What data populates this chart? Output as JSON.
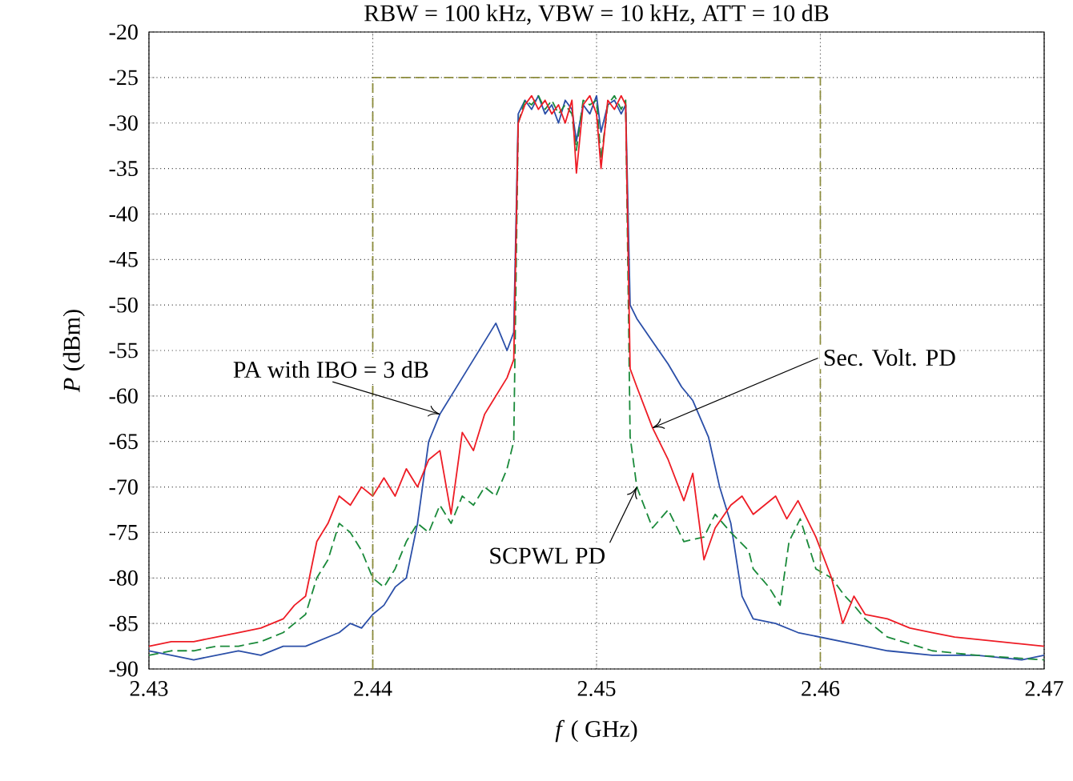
{
  "chart_data": {
    "type": "line",
    "title": "RBW = 100 kHz, VBW = 10 kHz, ATT = 10 dB",
    "xlabel": "*f* ( GHz)",
    "ylabel": "*P* (dBm)",
    "xlim": [
      2.43,
      2.47
    ],
    "xticks": [
      2.43,
      2.44,
      2.45,
      2.46,
      2.47
    ],
    "ylim": [
      -90,
      -20
    ],
    "yticks": [
      -90,
      -85,
      -80,
      -75,
      -70,
      -65,
      -60,
      -55,
      -50,
      -45,
      -40,
      -35,
      -30,
      -25,
      -20
    ],
    "grid": true,
    "marker": "none",
    "series": [
      {
        "color": "#2b4fa8",
        "line_style": "solid",
        "x": [
          2.43,
          2.431,
          2.432,
          2.433,
          2.434,
          2.435,
          2.436,
          2.437,
          2.438,
          2.4385,
          2.439,
          2.4395,
          2.44,
          2.4405,
          2.441,
          2.4415,
          2.442,
          2.4425,
          2.443,
          2.4435,
          2.444,
          2.4445,
          2.445,
          2.4455,
          2.446,
          2.4463,
          2.4465,
          2.4468,
          2.4471,
          2.4474,
          2.4477,
          2.448,
          2.4483,
          2.4486,
          2.4489,
          2.4491,
          2.4494,
          2.4497,
          2.45,
          2.4502,
          2.4505,
          2.4508,
          2.4511,
          2.4513,
          2.4515,
          2.4518,
          2.4525,
          2.4532,
          2.4538,
          2.4543,
          2.455,
          2.4555,
          2.456,
          2.4565,
          2.457,
          2.458,
          2.459,
          2.46,
          2.461,
          2.462,
          2.463,
          2.465,
          2.467,
          2.469,
          2.47
        ],
        "values": [
          -88,
          -88.5,
          -89,
          -88.5,
          -88,
          -88.5,
          -87.5,
          -87.5,
          -86.5,
          -86,
          -85,
          -85.5,
          -84,
          -83,
          -81,
          -80,
          -74,
          -65,
          -62,
          -60,
          -58,
          -56,
          -54,
          -52,
          -55,
          -53,
          -29,
          -27.5,
          -28.5,
          -27,
          -29,
          -28,
          -30,
          -27.5,
          -28.5,
          -32,
          -28,
          -29,
          -27,
          -31,
          -28,
          -27.5,
          -29,
          -28,
          -50,
          -51.5,
          -54,
          -56.5,
          -59,
          -60.5,
          -64.5,
          -70,
          -74,
          -82,
          -84.5,
          -85,
          -86,
          -86.5,
          -87,
          -87.5,
          -88,
          -88.5,
          -88.5,
          -89,
          -88.5
        ]
      },
      {
        "color": "#1a8a3a",
        "line_style": "dashed",
        "x": [
          2.43,
          2.431,
          2.432,
          2.433,
          2.434,
          2.435,
          2.436,
          2.4365,
          2.437,
          2.4375,
          2.438,
          2.4385,
          2.439,
          2.4395,
          2.44,
          2.4405,
          2.441,
          2.4415,
          2.442,
          2.4425,
          2.443,
          2.4435,
          2.444,
          2.4445,
          2.445,
          2.4455,
          2.446,
          2.4463,
          2.4465,
          2.4468,
          2.4471,
          2.4474,
          2.4477,
          2.448,
          2.4483,
          2.4486,
          2.4489,
          2.4491,
          2.4494,
          2.4497,
          2.45,
          2.4502,
          2.4505,
          2.4508,
          2.4511,
          2.4513,
          2.4515,
          2.4518,
          2.4525,
          2.4532,
          2.4539,
          2.4548,
          2.4553,
          2.456,
          2.4568,
          2.457,
          2.4577,
          2.4582,
          2.4586,
          2.4591,
          2.4598,
          2.4605,
          2.4611,
          2.4615,
          2.462,
          2.463,
          2.465,
          2.467,
          2.47
        ],
        "values": [
          -88.5,
          -88,
          -88,
          -87.5,
          -87.5,
          -87,
          -86,
          -85,
          -84,
          -80,
          -78,
          -74,
          -75,
          -77,
          -80,
          -81,
          -79,
          -76,
          -74,
          -75,
          -72,
          -74,
          -71,
          -72,
          -70,
          -71,
          -68,
          -65,
          -30,
          -27.5,
          -28,
          -27,
          -28.5,
          -27.5,
          -29,
          -28,
          -29,
          -33,
          -27.5,
          -28,
          -27.5,
          -34,
          -28,
          -27,
          -28.5,
          -27.5,
          -64.5,
          -70,
          -74.5,
          -72.5,
          -76,
          -75.5,
          -73,
          -75,
          -77,
          -79,
          -81,
          -83,
          -76,
          -73.5,
          -79,
          -80,
          -82,
          -83,
          -84.5,
          -86.5,
          -88,
          -88.5,
          -89
        ]
      },
      {
        "color": "#ee1c25",
        "line_style": "solid",
        "x": [
          2.43,
          2.431,
          2.432,
          2.433,
          2.434,
          2.435,
          2.436,
          2.4365,
          2.437,
          2.4375,
          2.438,
          2.4385,
          2.439,
          2.4395,
          2.44,
          2.4405,
          2.441,
          2.4415,
          2.442,
          2.4425,
          2.443,
          2.4435,
          2.444,
          2.4445,
          2.445,
          2.4455,
          2.446,
          2.4463,
          2.4465,
          2.4468,
          2.4471,
          2.4474,
          2.4477,
          2.448,
          2.4483,
          2.4486,
          2.4489,
          2.4491,
          2.4494,
          2.4497,
          2.45,
          2.4502,
          2.4505,
          2.4508,
          2.4511,
          2.4513,
          2.4515,
          2.4518,
          2.4525,
          2.4532,
          2.4539,
          2.4543,
          2.4548,
          2.4553,
          2.456,
          2.4565,
          2.457,
          2.4575,
          2.458,
          2.4585,
          2.459,
          2.4598,
          2.4605,
          2.461,
          2.4615,
          2.462,
          2.463,
          2.464,
          2.465,
          2.466,
          2.468,
          2.47
        ],
        "values": [
          -87.5,
          -87,
          -87,
          -86.5,
          -86,
          -85.5,
          -84.5,
          -83,
          -82,
          -76,
          -74,
          -71,
          -72,
          -70,
          -71,
          -69,
          -71,
          -68,
          -70,
          -67,
          -66,
          -73,
          -64,
          -66,
          -62,
          -60,
          -58,
          -56,
          -30,
          -28,
          -27,
          -28.5,
          -27.5,
          -29,
          -28,
          -30,
          -27.5,
          -35.5,
          -28,
          -27,
          -29,
          -35,
          -27.5,
          -28.5,
          -27,
          -28,
          -57,
          -59,
          -63.5,
          -67,
          -71.5,
          -68.5,
          -78,
          -74.5,
          -72,
          -71,
          -73,
          -72,
          -71,
          -73.5,
          -71.5,
          -75.5,
          -80,
          -85,
          -82,
          -84,
          -84.5,
          -85.5,
          -86,
          -86.5,
          -87,
          -87.5
        ]
      },
      {
        "color": "#8c8c3c",
        "line_style": "dashed",
        "x": [
          2.44,
          2.44,
          2.46,
          2.46
        ],
        "values": [
          -90,
          -25,
          -25,
          -90
        ]
      }
    ],
    "annotations": [
      {
        "text": "PA with IBO = 3 dB",
        "x": 2.443,
        "y": -62
      },
      {
        "text": "Sec. Volt. PD",
        "x": 2.4525,
        "y": -63.5
      },
      {
        "text": "SCPWL PD",
        "x": 2.4518,
        "y": -70
      }
    ]
  }
}
